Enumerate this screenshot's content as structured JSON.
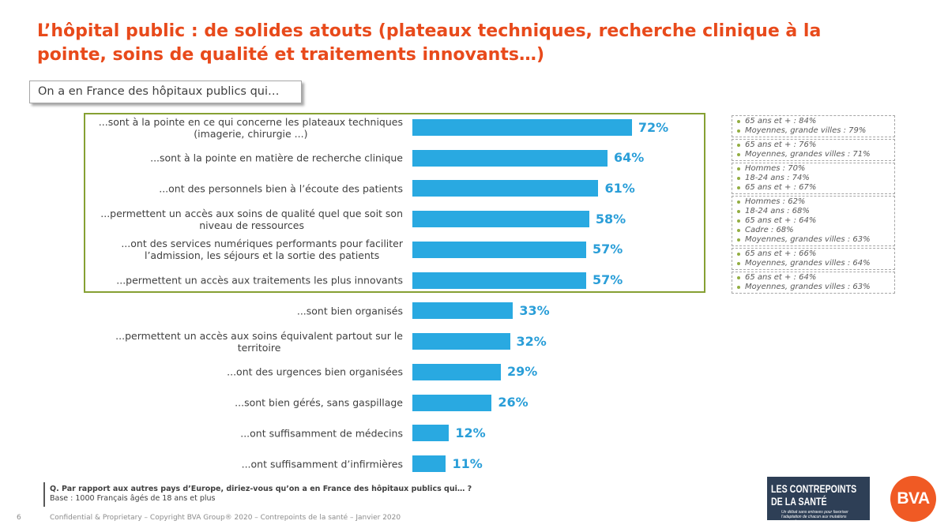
{
  "slide": {
    "title": "L’hôpital public : de solides atouts (plateaux techniques, recherche clinique à la\npointe, soins de qualité et traitements innovants…)",
    "page_number": "6",
    "footer": "Confidential & Proprietary – Copyright BVA Group® 2020 – Contrepoints de la santé – Janvier 2020"
  },
  "question": {
    "text": "Q. Par rapport aux autres pays d’Europe, diriez-vous qu’on a en France des hôpitaux publics qui… ?",
    "base": "Base : 1000 Français âgés de 18 ans et plus"
  },
  "chart_data": {
    "type": "bar",
    "title": "On a en France des hôpitaux publics qui…",
    "categories": [
      "...sont à la pointe en ce qui concerne les plateaux techniques\n(imagerie, chirurgie ...)",
      "...sont à la pointe en matière de recherche clinique",
      "...ont des personnels bien à l’écoute des patients",
      "...permettent un accès aux soins de qualité quel que soit son\nniveau de ressources",
      "...ont des services numériques performants pour faciliter\nl’admission, les séjours et la sortie des patients",
      "...permettent un accès aux traitements les plus innovants",
      "...sont bien organisés",
      "...permettent un accès aux soins équivalent partout sur le\nterritoire",
      "...ont des urgences bien organisées",
      "...sont bien gérés, sans gaspillage",
      "...ont suffisamment de médecins",
      "...ont suffisamment d’infirmières"
    ],
    "values": [
      72,
      64,
      61,
      58,
      57,
      57,
      33,
      32,
      29,
      26,
      12,
      11
    ],
    "value_labels": [
      "72%",
      "64%",
      "61%",
      "58%",
      "57%",
      "57%",
      "33%",
      "32%",
      "29%",
      "26%",
      "12%",
      "11%"
    ],
    "subgroup_notes": [
      [
        "65 ans et + : 84%",
        "Moyennes, grande villes : 79%"
      ],
      [
        "65 ans et + : 76%",
        "Moyennes, grandes villes : 71%"
      ],
      [
        "Hommes : 70%",
        "18-24 ans : 74%",
        "65 ans et + : 67%"
      ],
      [
        "Hommes : 62%",
        "18-24 ans : 68%",
        "65 ans et + : 64%",
        "Cadre : 68%",
        "Moyennes, grandes villes : 63%"
      ],
      [
        "65 ans et + : 66%",
        "Moyennes, grandes villes : 64%"
      ],
      [
        "65 ans et + : 64%",
        "Moyennes, grandes villes : 63%"
      ]
    ]
  },
  "logos": {
    "contrepoints": {
      "line1": "LES CONTREPOINTS",
      "line2": "DE LA SANTÉ",
      "tagline": "Un débat sans entraves pour favoriser l’adaptation de chacun aux mutations annoncées."
    },
    "bva": {
      "text": "BVA"
    }
  },
  "colors": {
    "accent": "#E84A1B",
    "bar": "#29A9E1",
    "value_label": "#2A9ED8",
    "highlight_border": "#86A033",
    "bullet": "#93AE42",
    "text": "#404040",
    "note_text": "#595959",
    "note_border": "#A6A6A6",
    "muted": "#8C8C8C",
    "logo_navy": "#2E3F56",
    "logo_orange": "#F05A24"
  }
}
